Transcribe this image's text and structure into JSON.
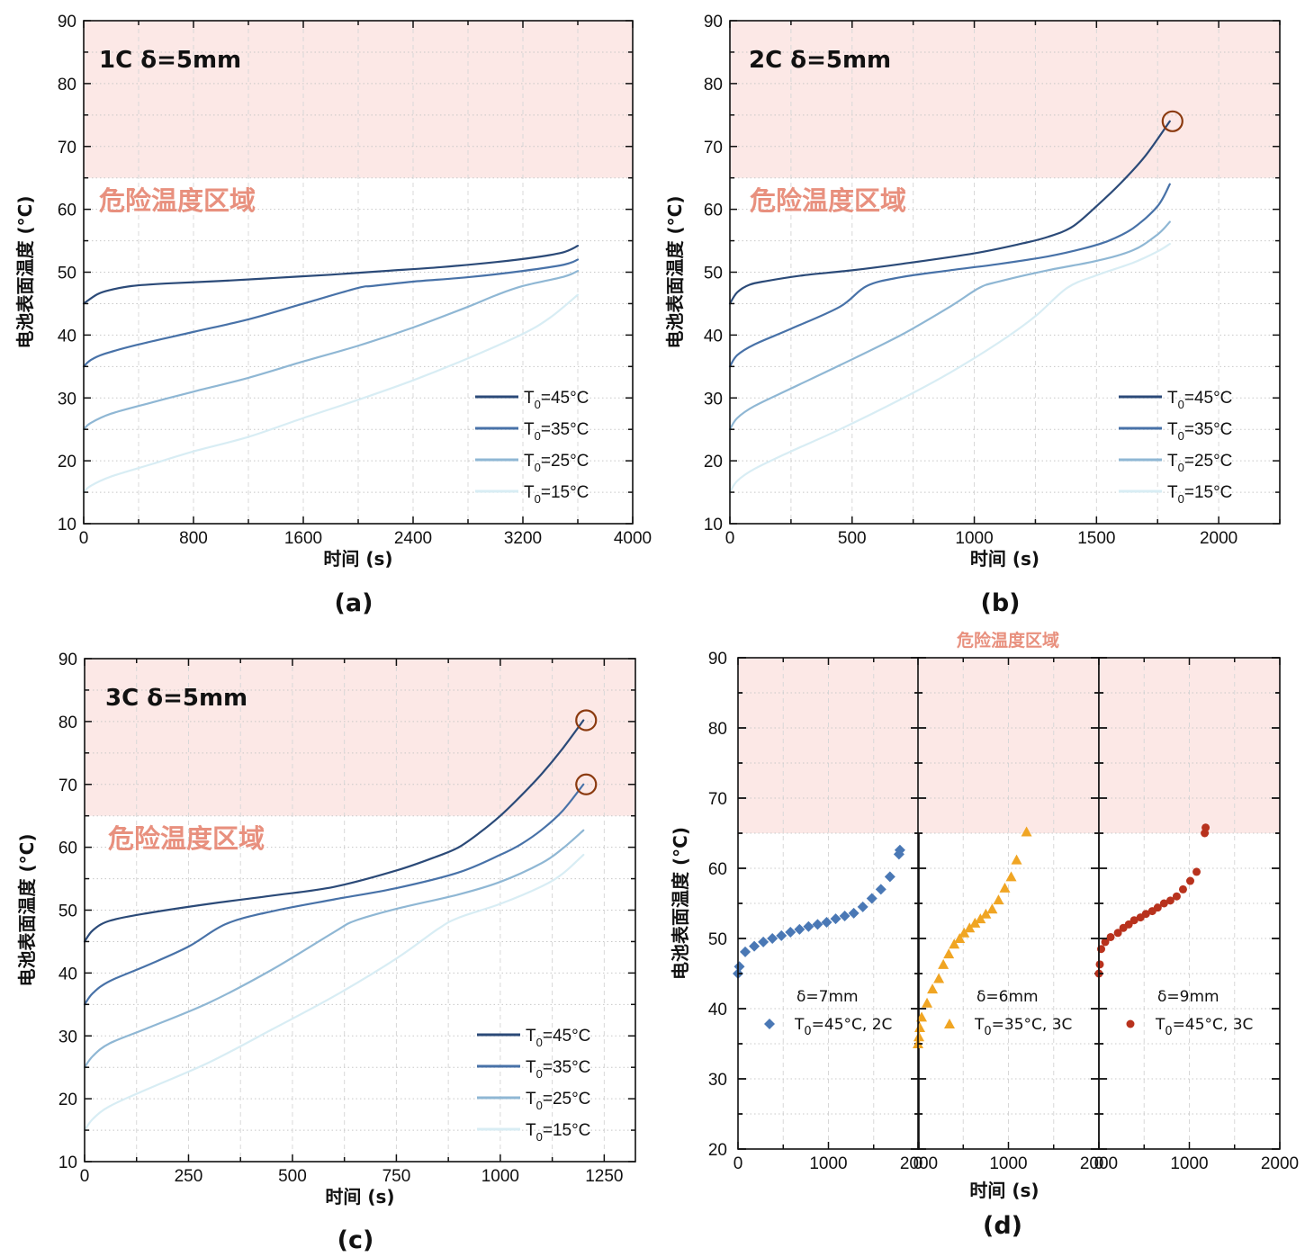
{
  "figure": {
    "danger_zone_label": "危险温度区域",
    "danger_zone_color": "#fce8e6",
    "danger_text_color": "#e8907e",
    "marker_circle_color": "#8b3a0f"
  },
  "chart_data": [
    {
      "id": "a",
      "type": "line",
      "panel_label": "(a)",
      "annotation": "1C δ=5mm",
      "xlabel": "时间 (s)",
      "ylabel": "电池表面温度 (°C)",
      "xlim": [
        0,
        4000
      ],
      "ylim": [
        10,
        90
      ],
      "xticks": [
        0,
        800,
        1600,
        2400,
        3200,
        4000
      ],
      "yticks": [
        10,
        20,
        30,
        40,
        50,
        60,
        70,
        80,
        90
      ],
      "danger_threshold": 65,
      "grid": true,
      "legend_position": "bottom-right",
      "circled_points": [],
      "series": [
        {
          "name": "T0=45°C",
          "legend_main": "T",
          "legend_sub": "0",
          "legend_rest": "=45°C",
          "color": "#2b4a78",
          "x": [
            0,
            100,
            200,
            350,
            600,
            1000,
            1400,
            1800,
            2200,
            2600,
            3000,
            3300,
            3500,
            3600
          ],
          "y": [
            45,
            46.5,
            47.2,
            47.8,
            48.2,
            48.6,
            49.1,
            49.6,
            50.2,
            50.8,
            51.6,
            52.4,
            53.2,
            54.2
          ]
        },
        {
          "name": "T0=35°C",
          "legend_main": "T",
          "legend_sub": "0",
          "legend_rest": "=35°C",
          "color": "#4872a8",
          "x": [
            0,
            50,
            150,
            400,
            800,
            1200,
            1600,
            2000,
            2100,
            2400,
            2800,
            3200,
            3500,
            3600
          ],
          "y": [
            35,
            36,
            37,
            38.5,
            40.5,
            42.5,
            45,
            47.5,
            47.8,
            48.5,
            49.2,
            50.2,
            51.2,
            52
          ]
        },
        {
          "name": "T0=25°C",
          "legend_main": "T",
          "legend_sub": "0",
          "legend_rest": "=25°C",
          "color": "#8fb7d4",
          "x": [
            0,
            50,
            200,
            500,
            800,
            1200,
            1600,
            2000,
            2400,
            2800,
            3000,
            3200,
            3500,
            3600
          ],
          "y": [
            25,
            26,
            27.5,
            29.3,
            31,
            33.2,
            35.8,
            38.3,
            41.2,
            44.5,
            46.3,
            47.8,
            49.3,
            50.2
          ]
        },
        {
          "name": "T0=15°C",
          "legend_main": "T",
          "legend_sub": "0",
          "legend_rest": "=15°C",
          "color": "#d8edf4",
          "x": [
            0,
            50,
            200,
            500,
            800,
            1200,
            1600,
            2000,
            2400,
            2800,
            3200,
            3400,
            3600
          ],
          "y": [
            15,
            16,
            17.5,
            19.5,
            21.5,
            23.8,
            26.8,
            29.7,
            32.8,
            36.3,
            40.2,
            42.8,
            46.4
          ]
        }
      ]
    },
    {
      "id": "b",
      "type": "line",
      "panel_label": "(b)",
      "annotation": "2C δ=5mm",
      "xlabel": "时间 (s)",
      "ylabel": "电池表面温度 (°C)",
      "xlim": [
        0,
        2250
      ],
      "ylim": [
        10,
        90
      ],
      "xticks": [
        0,
        500,
        1000,
        1500,
        2000
      ],
      "yticks": [
        10,
        20,
        30,
        40,
        50,
        60,
        70,
        80,
        90
      ],
      "danger_threshold": 65,
      "grid": true,
      "legend_position": "bottom-right",
      "circled_points": [
        {
          "x": 1800,
          "y": 74
        }
      ],
      "series": [
        {
          "name": "T0=45°C",
          "legend_main": "T",
          "legend_sub": "0",
          "legend_rest": "=45°C",
          "color": "#2b4a78",
          "x": [
            0,
            30,
            80,
            150,
            300,
            500,
            700,
            1000,
            1200,
            1300,
            1400,
            1500,
            1600,
            1700,
            1800
          ],
          "y": [
            45,
            46.8,
            48,
            48.6,
            49.5,
            50.3,
            51.3,
            53,
            54.6,
            55.6,
            57.2,
            60.5,
            64.2,
            68.5,
            74
          ]
        },
        {
          "name": "T0=35°C",
          "legend_main": "T",
          "legend_sub": "0",
          "legend_rest": "=35°C",
          "color": "#4872a8",
          "x": [
            0,
            30,
            100,
            250,
            450,
            560,
            700,
            900,
            1100,
            1300,
            1450,
            1550,
            1650,
            1750,
            1800
          ],
          "y": [
            35,
            36.8,
            38.5,
            41,
            44.5,
            47.8,
            49.2,
            50.3,
            51.3,
            52.5,
            53.8,
            55,
            57,
            60.5,
            64
          ]
        },
        {
          "name": "T0=25°C",
          "legend_main": "T",
          "legend_sub": "0",
          "legend_rest": "=25°C",
          "color": "#8fb7d4",
          "x": [
            0,
            30,
            100,
            250,
            450,
            700,
            900,
            1020,
            1100,
            1300,
            1500,
            1650,
            1750,
            1800
          ],
          "y": [
            25,
            26.8,
            28.7,
            31.5,
            35.2,
            40,
            44.5,
            47.5,
            48.5,
            50.3,
            51.8,
            53.5,
            56,
            58
          ]
        },
        {
          "name": "T0=15°C",
          "legend_main": "T",
          "legend_sub": "0",
          "legend_rest": "=15°C",
          "color": "#d8edf4",
          "x": [
            0,
            30,
            100,
            250,
            450,
            700,
            900,
            1100,
            1250,
            1380,
            1500,
            1650,
            1750,
            1800
          ],
          "y": [
            15,
            16.8,
            18.7,
            21.5,
            25,
            29.8,
            34,
            38.8,
            43,
            47.5,
            49.5,
            51.5,
            53.3,
            54.5
          ]
        }
      ]
    },
    {
      "id": "c",
      "type": "line",
      "panel_label": "(c)",
      "annotation": "3C δ=5mm",
      "xlabel": "时间 (s)",
      "ylabel": "电池表面温度 (°C)",
      "xlim": [
        0,
        1325
      ],
      "ylim": [
        10,
        90
      ],
      "xticks": [
        0,
        250,
        500,
        750,
        1000,
        1250
      ],
      "yticks": [
        10,
        20,
        30,
        40,
        50,
        60,
        70,
        80,
        90
      ],
      "danger_threshold": 65,
      "grid": true,
      "legend_position": "bottom-right",
      "circled_points": [
        {
          "x": 1200,
          "y": 80.2
        },
        {
          "x": 1200,
          "y": 70
        }
      ],
      "series": [
        {
          "name": "T0=45°C",
          "legend_main": "T",
          "legend_sub": "0",
          "legend_rest": "=45°C",
          "color": "#2b4a78",
          "x": [
            0,
            20,
            60,
            150,
            300,
            450,
            600,
            750,
            850,
            900,
            950,
            1000,
            1050,
            1100,
            1150,
            1200
          ],
          "y": [
            45,
            46.8,
            48.3,
            49.5,
            51,
            52.3,
            53.7,
            56.3,
            58.6,
            60,
            62.3,
            65,
            68.2,
            71.7,
            75.7,
            80.2
          ]
        },
        {
          "name": "T0=35°C",
          "legend_main": "T",
          "legend_sub": "0",
          "legend_rest": "=35°C",
          "color": "#4872a8",
          "x": [
            0,
            20,
            60,
            150,
            250,
            340,
            450,
            600,
            750,
            900,
            1000,
            1050,
            1100,
            1150,
            1200
          ],
          "y": [
            35,
            36.8,
            38.7,
            41.2,
            44.2,
            47.8,
            49.8,
            51.7,
            53.5,
            56,
            58.8,
            60.5,
            62.8,
            65.8,
            70
          ]
        },
        {
          "name": "T0=25°C",
          "legend_main": "T",
          "legend_sub": "0",
          "legend_rest": "=25°C",
          "color": "#8fb7d4",
          "x": [
            0,
            20,
            60,
            150,
            300,
            450,
            600,
            650,
            750,
            900,
            1000,
            1100,
            1150,
            1200
          ],
          "y": [
            25,
            26.8,
            28.8,
            31.2,
            35.3,
            40.5,
            46.5,
            48.3,
            50.2,
            52.5,
            54.5,
            57.5,
            59.8,
            62.7
          ]
        },
        {
          "name": "T0=15°C",
          "legend_main": "T",
          "legend_sub": "0",
          "legend_rest": "=15°C",
          "color": "#d8edf4",
          "x": [
            0,
            20,
            60,
            150,
            300,
            450,
            600,
            750,
            850,
            900,
            1000,
            1100,
            1150,
            1200
          ],
          "y": [
            15,
            16.8,
            18.8,
            21.5,
            25.8,
            31,
            36.3,
            42.3,
            47,
            48.8,
            51,
            53.8,
            55.8,
            58.8
          ]
        }
      ]
    },
    {
      "id": "d",
      "type": "scatter",
      "panel_label": "(d)",
      "title": "危险温度区域",
      "xlabel": "时间 (s)",
      "ylabel": "电池表面温度 (°C)",
      "ylim": [
        20,
        90
      ],
      "yticks": [
        20,
        30,
        40,
        50,
        60,
        70,
        80,
        90
      ],
      "danger_threshold": 65,
      "grid": true,
      "legend_position": "bottom-center of each subpanel",
      "subplots": [
        {
          "xlim": [
            0,
            2000
          ],
          "xticks": [
            0,
            1000,
            2000
          ],
          "xtick_labels": [
            "0",
            "1000",
            "2000"
          ],
          "name": "δ=7mm",
          "legend_main": "T",
          "legend_sub": "0",
          "legend_rest": "=45°C, 2C",
          "marker": "diamond",
          "color": "#4a78b5",
          "x": [
            0,
            15,
            80,
            180,
            280,
            380,
            480,
            580,
            680,
            780,
            880,
            980,
            1080,
            1180,
            1280,
            1380,
            1480,
            1580,
            1680,
            1780,
            1790
          ],
          "y": [
            45,
            46,
            48.1,
            48.9,
            49.5,
            50,
            50.4,
            50.9,
            51.3,
            51.7,
            52,
            52.3,
            52.8,
            53.2,
            53.6,
            54.5,
            55.7,
            57,
            58.8,
            62,
            62.6
          ]
        },
        {
          "xlim": [
            0,
            2000
          ],
          "xticks": [
            0,
            1000,
            2000
          ],
          "xtick_labels": [
            "0",
            "1000",
            "2000"
          ],
          "name": "δ=6mm",
          "legend_main": "T",
          "legend_sub": "0",
          "legend_rest": "=35°C, 3C",
          "marker": "triangle",
          "color": "#f0a523",
          "x": [
            0,
            10,
            20,
            40,
            100,
            160,
            230,
            280,
            340,
            400,
            460,
            510,
            570,
            630,
            690,
            750,
            820,
            890,
            960,
            1030,
            1090,
            1200
          ],
          "y": [
            35,
            36,
            37.3,
            38.8,
            40.8,
            42.8,
            44.3,
            46.3,
            47.8,
            49.2,
            50,
            50.8,
            51.5,
            52.2,
            52.8,
            53.5,
            54.2,
            55.5,
            57.2,
            58.8,
            61.2,
            65.2
          ]
        },
        {
          "xlim": [
            0,
            2000
          ],
          "xticks": [
            0,
            1000,
            2000
          ],
          "xtick_labels": [
            "0",
            "1000",
            "2000"
          ],
          "name": "δ=9mm",
          "legend_main": "T",
          "legend_sub": "0",
          "legend_rest": "=45°C, 3C",
          "marker": "circle",
          "color": "#b8321d",
          "x": [
            0,
            10,
            25,
            70,
            130,
            210,
            270,
            330,
            390,
            460,
            520,
            590,
            650,
            720,
            790,
            860,
            930,
            1010,
            1080,
            1170,
            1180
          ],
          "y": [
            45,
            46.3,
            48.5,
            49.5,
            50.2,
            50.8,
            51.5,
            52,
            52.6,
            53,
            53.5,
            53.9,
            54.4,
            55,
            55.4,
            56,
            57,
            58.2,
            59.5,
            65,
            65.8
          ]
        }
      ]
    }
  ]
}
